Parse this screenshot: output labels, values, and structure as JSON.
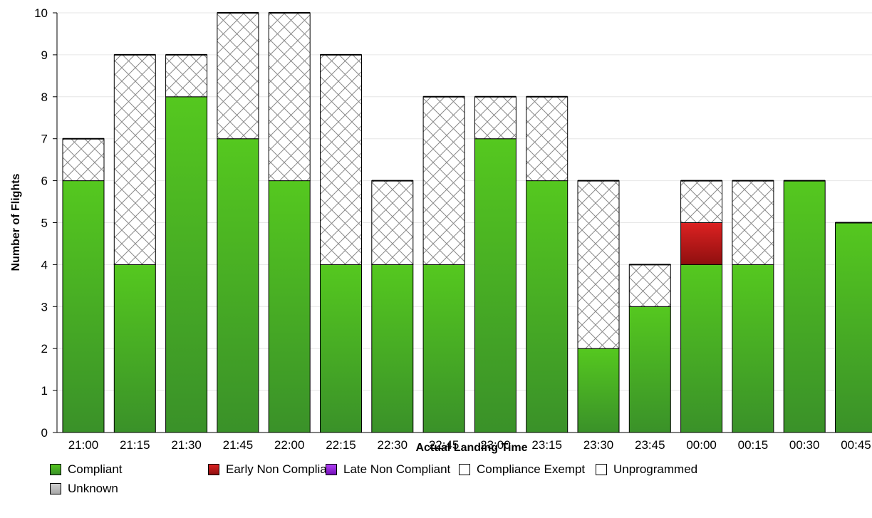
{
  "chart_data": {
    "type": "bar",
    "stacked": true,
    "xlabel": "Actual Landing Time",
    "ylabel": "Number of Flights",
    "ylim": [
      0,
      10
    ],
    "yticks": [
      0,
      1,
      2,
      3,
      4,
      5,
      6,
      7,
      8,
      9,
      10
    ],
    "grid": true,
    "legend_position": "bottom",
    "categories": [
      "21:00",
      "21:15",
      "21:30",
      "21:45",
      "22:00",
      "22:15",
      "22:30",
      "22:45",
      "23:00",
      "23:15",
      "23:30",
      "23:45",
      "00:00",
      "00:15",
      "00:30",
      "00:45"
    ],
    "series": [
      {
        "name": "Compliant",
        "color": "#4cbf1e",
        "pattern": "solid-green",
        "values": [
          6,
          4,
          8,
          7,
          6,
          4,
          4,
          4,
          7,
          6,
          2,
          3,
          4,
          4,
          6,
          5
        ]
      },
      {
        "name": "Early Non Compliant",
        "color": "#cc1a1a",
        "pattern": "solid-red",
        "values": [
          0,
          0,
          0,
          0,
          0,
          0,
          0,
          0,
          0,
          0,
          0,
          0,
          1,
          0,
          0,
          0
        ]
      },
      {
        "name": "Late Non Compliant",
        "color": "#a020f0",
        "pattern": "solid-purple",
        "values": [
          0,
          0,
          0,
          0,
          0,
          0,
          0,
          0,
          0,
          0,
          0,
          0,
          0,
          0,
          0,
          0
        ]
      },
      {
        "name": "Compliance Exempt",
        "color": "#ffffff",
        "pattern": "white",
        "values": [
          0,
          0,
          0,
          0,
          0,
          0,
          0,
          0,
          0,
          0,
          0,
          0,
          0,
          0,
          0,
          0
        ]
      },
      {
        "name": "Unprogrammed",
        "color": "#ffffff",
        "pattern": "crosshatch",
        "values": [
          1,
          5,
          1,
          3,
          4,
          5,
          2,
          4,
          1,
          2,
          4,
          1,
          1,
          2,
          0,
          0
        ]
      },
      {
        "name": "Unknown",
        "color": "#c0c0c0",
        "pattern": "solid-grey",
        "values": [
          0,
          0,
          0,
          0,
          0,
          0,
          0,
          0,
          0,
          0,
          0,
          0,
          0,
          0,
          0,
          0
        ]
      }
    ]
  }
}
